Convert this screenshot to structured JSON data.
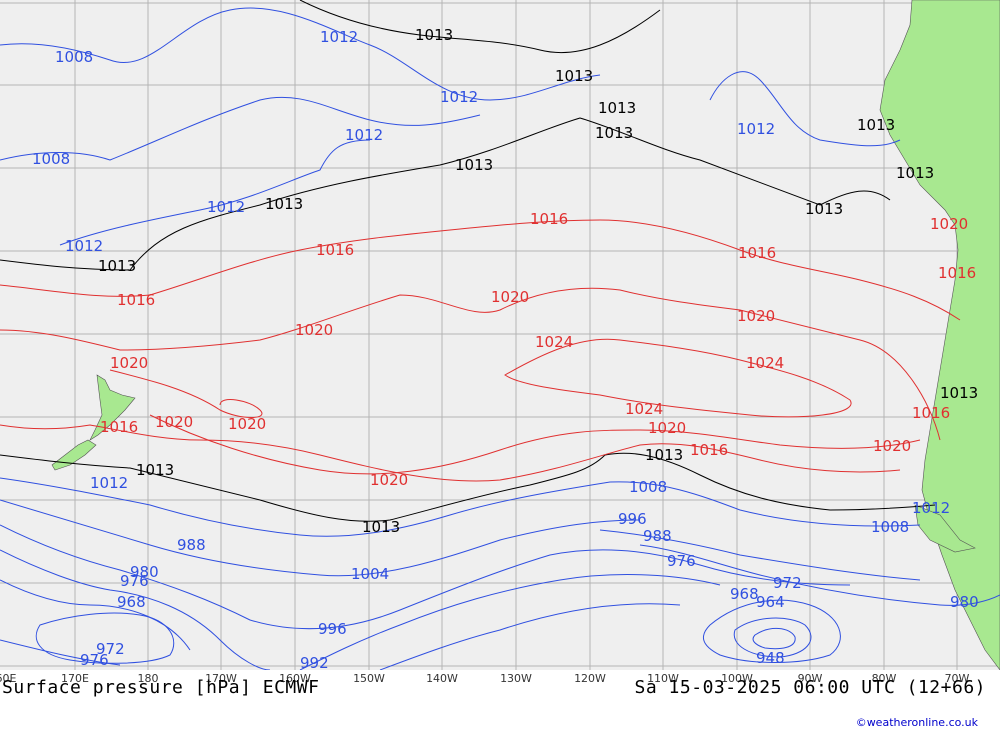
{
  "footer": {
    "title": "Surface pressure [hPa] ECMWF",
    "datetime": "Sa 15-03-2025 06:00 UTC (12+66)",
    "credit": "©weatheronline.co.uk"
  },
  "longitudes": [
    {
      "label": "60E",
      "x": 0
    },
    {
      "label": "170E",
      "x": 1
    },
    {
      "label": "180",
      "x": 2
    },
    {
      "label": "170W",
      "x": 3
    },
    {
      "label": "160W",
      "x": 4
    },
    {
      "label": "150W",
      "x": 5
    },
    {
      "label": "140W",
      "x": 6
    },
    {
      "label": "130W",
      "x": 7
    },
    {
      "label": "120W",
      "x": 8
    },
    {
      "label": "110W",
      "x": 9
    },
    {
      "label": "100W",
      "x": 10
    },
    {
      "label": "90W",
      "x": 11
    },
    {
      "label": "80W",
      "x": 12
    },
    {
      "label": "70W",
      "x": 13
    }
  ],
  "colors": {
    "ocean": "#efefef",
    "land": "#a8e890",
    "grid": "#b4b4b4",
    "low": "#3050e0",
    "high": "#e03030",
    "std": "#000000"
  },
  "isobar_labels": [
    {
      "text": "1012",
      "color": "low"
    },
    {
      "text": "1013",
      "color": "std"
    },
    {
      "text": "1008",
      "color": "low"
    },
    {
      "text": "1016",
      "color": "high"
    },
    {
      "text": "1020",
      "color": "high"
    },
    {
      "text": "1024",
      "color": "high"
    },
    {
      "text": "1004",
      "color": "low"
    },
    {
      "text": "996",
      "color": "low"
    },
    {
      "text": "988",
      "color": "low"
    },
    {
      "text": "980",
      "color": "low"
    },
    {
      "text": "976",
      "color": "low"
    },
    {
      "text": "972",
      "color": "low"
    },
    {
      "text": "968",
      "color": "low"
    },
    {
      "text": "964",
      "color": "low"
    },
    {
      "text": "948",
      "color": "low"
    },
    {
      "text": "992",
      "color": "low"
    }
  ]
}
